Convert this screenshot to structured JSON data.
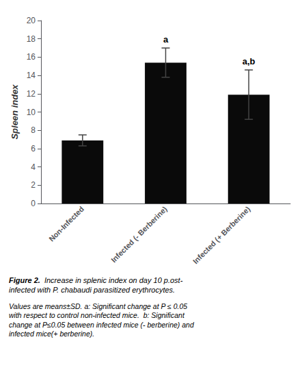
{
  "chart_data": {
    "type": "bar",
    "categories": [
      "Non-Infected",
      "Infected (- Berberine)",
      "Infected (+ Berberine)"
    ],
    "values": [
      6.9,
      15.4,
      11.9
    ],
    "errors": [
      0.6,
      1.6,
      2.7
    ],
    "color": "#0a0a0a",
    "ylim": [
      0,
      20
    ],
    "yticks": [
      0,
      2,
      4,
      6,
      8,
      10,
      12,
      14,
      16,
      18,
      20
    ],
    "ylabel": "Spleen index",
    "grid": false,
    "annotations": [
      {
        "category": "Infected (- Berberine)",
        "text": "a"
      },
      {
        "category": "Infected (+ Berberine)",
        "text": "a,b"
      }
    ],
    "caption": [
      {
        "bold": "Figure 2.",
        "text": "  Increase in splenic index on day 10 p.ost-\ninfected with P. chabaudi parasitized erythrocytes."
      },
      {
        "text": "Values are means±SD. a: Significant change at P ≤ 0.05\nwith respect to control non-infected mice.  b: Significant\nchange at P≤0.05 between infected mice (- berberine) and\ninfected mice(+ berberine)."
      }
    ]
  }
}
